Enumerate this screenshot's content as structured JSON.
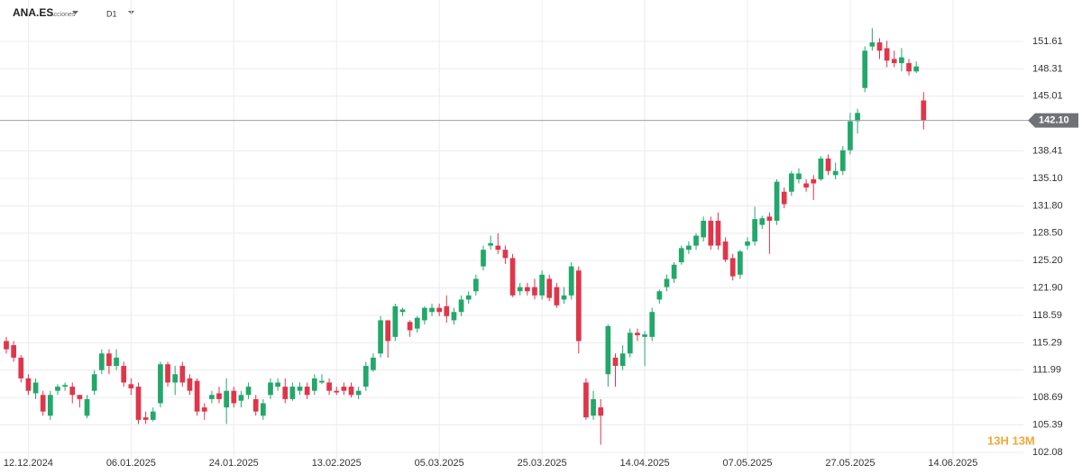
{
  "header": {
    "symbol": "ANA.ES",
    "asset_class": "Acciones",
    "timeframe": "D1"
  },
  "chart_data": {
    "type": "candlestick",
    "up_color": "#22a86a",
    "down_color": "#e0354b",
    "grid": true,
    "open": [
      115.5,
      115,
      113.5,
      111,
      109.2,
      109,
      106.5,
      109.5,
      110,
      110,
      109,
      106.5,
      109.5,
      112,
      114,
      112.5,
      112.5,
      110.3,
      110,
      106.3,
      106,
      108,
      112.7,
      110.5,
      112.5,
      111,
      110.7,
      107.5,
      108.5,
      109.2,
      107.5,
      109.5,
      108.3,
      109,
      108.5,
      106.5,
      109,
      110,
      110,
      108.5,
      109.5,
      110,
      109.5,
      110.5,
      110.5,
      109.5,
      110,
      110,
      109,
      110,
      112,
      114,
      118,
      116,
      119,
      117.8,
      117,
      118,
      119,
      119.5,
      119.7,
      118,
      119,
      120.5,
      121.5,
      124.5,
      127,
      127,
      126.5,
      125.5,
      121.5,
      122,
      122,
      121,
      123,
      122,
      120.5,
      121,
      124,
      110.5,
      106.5,
      107.5,
      111.5,
      113.5,
      112.5,
      114,
      116.5,
      116,
      116,
      120.5,
      122,
      123,
      125,
      126.5,
      127,
      128,
      130,
      130,
      127.5,
      125.5,
      123.5,
      127,
      127.5,
      129.5,
      130.5,
      130,
      133.5,
      133.5,
      135,
      134.5,
      135,
      135,
      137.5,
      135.5,
      136,
      138.5,
      142,
      146,
      151,
      151.5,
      150.8,
      149.5,
      149,
      149,
      148,
      144.5
    ],
    "high": [
      116,
      115.5,
      113.8,
      111.5,
      111,
      109.5,
      109.5,
      110.3,
      110.5,
      110.5,
      109,
      109,
      112,
      114.5,
      114.5,
      114.5,
      113,
      111,
      110.5,
      107,
      107.5,
      113,
      113,
      112.5,
      113,
      111.5,
      111,
      108,
      109.5,
      110,
      111,
      110,
      109.5,
      110.5,
      109,
      108.5,
      111,
      111,
      111,
      110.5,
      110.5,
      110.5,
      111.5,
      111.5,
      111,
      110,
      110.5,
      110.5,
      110,
      113,
      114,
      118.5,
      118,
      120,
      119.5,
      118,
      118.5,
      119.7,
      120,
      120,
      121,
      119.5,
      121,
      121.5,
      123.5,
      127,
      128.2,
      128.5,
      127,
      126,
      122.5,
      122.5,
      123,
      124,
      123.5,
      122.5,
      122,
      125,
      124.5,
      111,
      109.5,
      108.5,
      117.5,
      114,
      115,
      117,
      117,
      116.7,
      119.5,
      121.7,
      123.5,
      125,
      127,
      127.5,
      128.5,
      130.5,
      130.5,
      131,
      128,
      126,
      126.5,
      128,
      131.7,
      130.6,
      131,
      135,
      134,
      136,
      136.3,
      135,
      135.5,
      137.8,
      138,
      137,
      139,
      143,
      143.5,
      151,
      153.2,
      152,
      151.7,
      150.5,
      150.8,
      149.5,
      149.2,
      145.5
    ],
    "low": [
      114,
      113,
      110.5,
      109,
      108.5,
      106.5,
      106,
      109,
      109.5,
      108,
      107.5,
      106.2,
      109,
      111.5,
      111.5,
      112,
      110,
      109,
      105.5,
      105.5,
      105.8,
      107.5,
      110,
      109,
      110,
      109,
      106.5,
      106,
      108,
      108,
      105.5,
      107.5,
      107.5,
      108.5,
      106.5,
      106,
      108.5,
      109.5,
      108,
      108.3,
      109,
      108.5,
      109,
      110.3,
      109,
      109,
      109,
      108.7,
      108.5,
      109.5,
      111.8,
      113.5,
      113.5,
      115.5,
      118.5,
      116,
      116.5,
      117.5,
      118.5,
      118.5,
      117.7,
      117.5,
      118.5,
      120,
      121,
      124,
      126.5,
      126,
      124.8,
      120.8,
      121,
      121,
      120.5,
      120.5,
      120.3,
      119.5,
      120,
      120.5,
      114,
      106,
      106,
      103,
      110,
      110,
      112,
      113.5,
      115.5,
      112.5,
      115.5,
      120,
      121.5,
      122.5,
      124.7,
      126,
      126.5,
      127.5,
      126.5,
      126.5,
      125,
      122.8,
      123,
      126.5,
      127,
      129,
      126,
      129.5,
      131.5,
      133,
      134.5,
      133.5,
      132.5,
      134.8,
      135.5,
      135,
      135.5,
      138,
      140.5,
      145.5,
      150.5,
      149.5,
      148.5,
      148.5,
      148,
      147.5,
      147.8,
      141
    ],
    "close": [
      114.5,
      113.5,
      111,
      109.5,
      110.5,
      107,
      109,
      110,
      110.2,
      109,
      108.5,
      108.5,
      111.5,
      114,
      112.5,
      113.5,
      110.5,
      109.8,
      106,
      106,
      107,
      112.7,
      110.5,
      111.5,
      110.5,
      109.5,
      107,
      107,
      109,
      108.5,
      109.5,
      108,
      109,
      110,
      107,
      108,
      110.5,
      110.5,
      108.5,
      110,
      110,
      109,
      111,
      110.7,
      109.5,
      109.3,
      109.5,
      109,
      109.5,
      112.5,
      113.5,
      118,
      115.5,
      119.7,
      119.3,
      116.8,
      118.3,
      119.5,
      119.5,
      119,
      118.5,
      119,
      120.5,
      121,
      123,
      126.5,
      127.3,
      126.5,
      125.5,
      121,
      122,
      121.5,
      121,
      123.5,
      120.7,
      119.8,
      121,
      124.5,
      115.5,
      106.3,
      108.5,
      106.5,
      117.3,
      112.5,
      114,
      116.5,
      116.2,
      116.3,
      119,
      121.5,
      123,
      124.7,
      126.7,
      127,
      128.2,
      130,
      127,
      127,
      125.3,
      123.3,
      126.3,
      127.5,
      130.2,
      130.3,
      130,
      134.7,
      132,
      135.7,
      135.7,
      134,
      134.5,
      137.5,
      136,
      136,
      138.5,
      142,
      143,
      150.5,
      151.5,
      150.5,
      149.3,
      149,
      149.7,
      148,
      148.6,
      142.1
    ],
    "xlim": [
      -0.86,
      138.6
    ],
    "xticks": [
      {
        "value": 3,
        "label": "12.12.2024"
      },
      {
        "value": 17,
        "label": "06.01.2025"
      },
      {
        "value": 31,
        "label": "24.01.2025"
      },
      {
        "value": 45,
        "label": "13.02.2025"
      },
      {
        "value": 59,
        "label": "05.03.2025"
      },
      {
        "value": 73,
        "label": "25.03.2025"
      },
      {
        "value": 87,
        "label": "14.04.2025"
      },
      {
        "value": 101,
        "label": "07.05.2025"
      },
      {
        "value": 115,
        "label": "27.05.2025"
      },
      {
        "value": 129,
        "label": "14.06.2025"
      }
    ],
    "ylim": [
      101.21,
      156.61
    ],
    "yticks": [
      102.08,
      105.39,
      108.69,
      111.99,
      115.29,
      118.59,
      {
        "value": 121.9,
        "label": "121.90"
      },
      {
        "value": 125.2,
        "label": "125.20"
      },
      {
        "value": 128.5,
        "label": "128.50"
      },
      {
        "value": 131.8,
        "label": "131.80"
      },
      {
        "value": 135.1,
        "label": "135.10"
      },
      138.41,
      145.01,
      148.31,
      151.61
    ],
    "last_price": {
      "value": 142.1,
      "label": "142.10"
    },
    "countdown": "13H 13M"
  }
}
